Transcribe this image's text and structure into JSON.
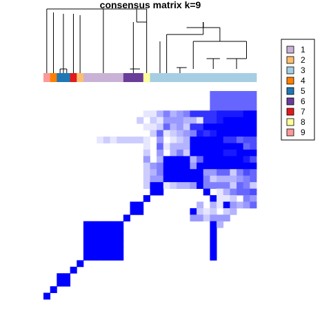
{
  "chart_data": {
    "type": "heatmap",
    "title": "consensus matrix k=9",
    "n_samples": 32,
    "colors": {
      "low": "#ffffff",
      "high": "#0000ff",
      "dendrogram": "#000000",
      "legend_border": "#000000"
    },
    "classes": [
      "1",
      "2",
      "3",
      "4",
      "5",
      "6",
      "7",
      "8",
      "9"
    ],
    "class_colors": [
      "#cab2d6",
      "#fdbf6f",
      "#a6cee3",
      "#ff7f00",
      "#1f78b4",
      "#6a3d9a",
      "#e31a1c",
      "#ffff99",
      "#fb9a99"
    ],
    "sample_classes": [
      9,
      4,
      5,
      5,
      7,
      2,
      1,
      1,
      1,
      1,
      1,
      1,
      6,
      6,
      6,
      8,
      3,
      3,
      3,
      3,
      3,
      3,
      3,
      3,
      3,
      3,
      3,
      3,
      3,
      3,
      3,
      3
    ],
    "legend_position": "right",
    "matrix_rows": [
      "00000000000000000000000000000000",
      "00000000000000000000000000000000",
      "00000000000000000000000000000000",
      "000000000000000113534588889999aa",
      "000000000000002021444331889aaaaa",
      "000000000000000112634288aaaaaaaa",
      "00000000000000002612345989adaaaa",
      "000000001212222104012366aaa88677",
      "000000000000000106133365aadaaa67",
      "0000000000000002040352369aa99aaa",
      "000000000000000403026236aaaaaa97",
      "00000000000000024542624daaaaaaaa",
      "0000000000000002353246aa44662576",
      "0000000000000002444445aa52333456",
      "00000000000000025312334a55552652",
      "000000000000000000000000a0135667",
      "0000000000000000000000000a112054",
      "000000000000000000000003031a4346",
      "0000000000000000000000a212023000",
      "00000000000000000000004424440000",
      "0000000000000000000000000a300000",
      "0000000000000000000000000a000000",
      "0000000000000000000000000a000000",
      "0000000000000000000000000a000000",
      "0000000000000000000000000a000000",
      "0000000000000000000000000a000000",
      "00000000000000000000000000000000",
      "00000000000000000000000000000000",
      "00000000000000000000000000000000",
      "00000000000000000000000000000000",
      "00000000000000000000000000000000",
      "00000000000000000000000000000000"
    ],
    "blocks": [
      {
        "start": 0,
        "end": 0,
        "value": 1.0
      },
      {
        "start": 1,
        "end": 1,
        "value": 1.0
      },
      {
        "start": 2,
        "end": 3,
        "value": 1.0
      },
      {
        "start": 4,
        "end": 4,
        "value": 1.0
      },
      {
        "start": 5,
        "end": 5,
        "value": 1.0
      },
      {
        "start": 6,
        "end": 11,
        "value": 1.0
      },
      {
        "start": 12,
        "end": 12,
        "value": 1.0
      },
      {
        "start": 13,
        "end": 14,
        "value": 1.0
      },
      {
        "start": 15,
        "end": 15,
        "value": 1.0
      },
      {
        "start": 16,
        "end": 17,
        "value": 1.0
      },
      {
        "start": 18,
        "end": 21,
        "value": 1.0
      },
      {
        "start": 22,
        "end": 24,
        "value": 1.0
      },
      {
        "start": 25,
        "end": 31,
        "value": 0.6
      }
    ],
    "offdiag": [
      {
        "r0": 25,
        "r1": 31,
        "c0": 18,
        "c1": 24,
        "value": 0.45
      },
      {
        "r0": 18,
        "r1": 24,
        "c0": 25,
        "c1": 31,
        "value": 0.45
      },
      {
        "r0": 16,
        "r1": 17,
        "c0": 18,
        "c1": 31,
        "value": 0.3
      },
      {
        "r0": 18,
        "r1": 31,
        "c0": 16,
        "c1": 17,
        "value": 0.3
      },
      {
        "r0": 15,
        "r1": 15,
        "c0": 16,
        "c1": 31,
        "value": 0.2
      },
      {
        "r0": 16,
        "r1": 31,
        "c0": 15,
        "c1": 15,
        "value": 0.2
      },
      {
        "r0": 22,
        "r1": 24,
        "c0": 6,
        "c1": 11,
        "value": 0.15
      },
      {
        "r0": 6,
        "r1": 11,
        "c0": 22,
        "c1": 24,
        "value": 0.15
      }
    ]
  }
}
